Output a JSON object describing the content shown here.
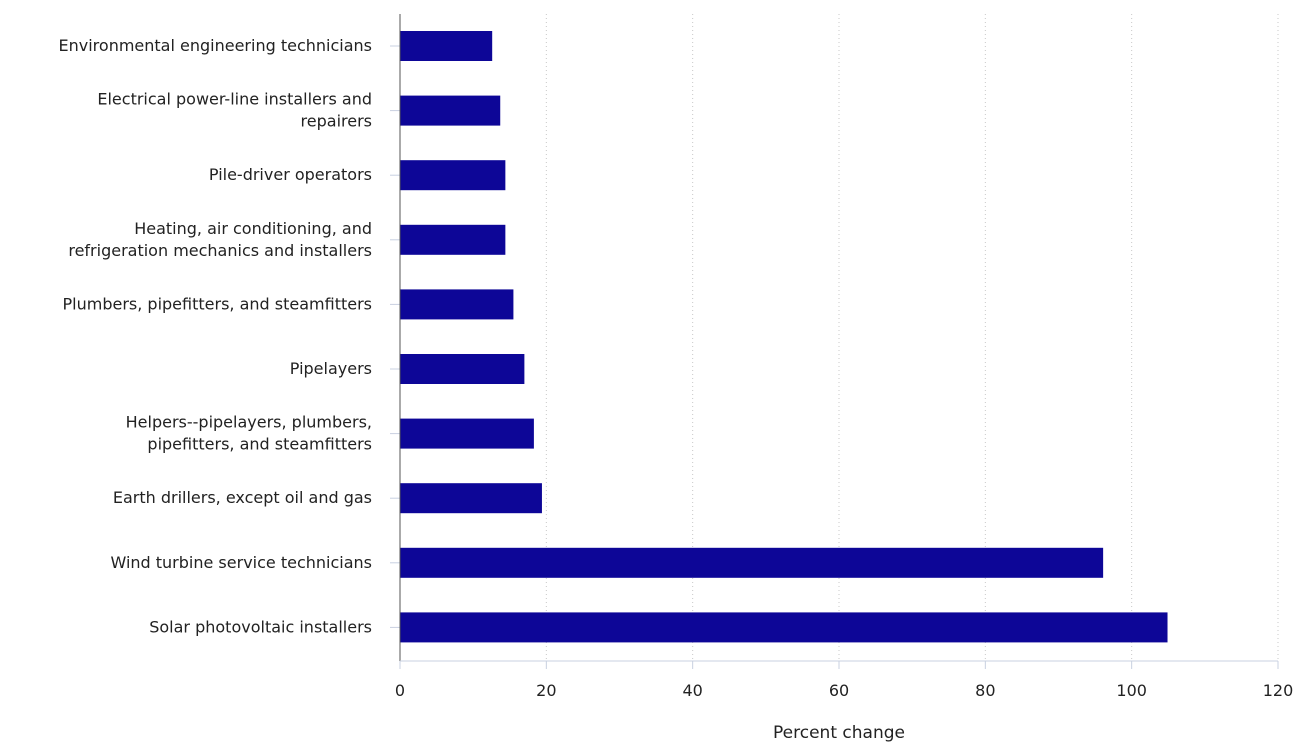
{
  "chart_data": {
    "type": "bar",
    "orientation": "horizontal",
    "title": "",
    "xlabel": "Percent change",
    "ylabel": "",
    "xlim": [
      0,
      120
    ],
    "xticks": [
      0,
      20,
      40,
      60,
      80,
      100,
      120
    ],
    "grid": true,
    "bar_color": "#0d0697",
    "categories": [
      "Environmental engineering technicians",
      "Electrical power-line installers and repairers",
      "Pile-driver operators",
      "Heating, air conditioning, and refrigeration mechanics and installers",
      "Plumbers, pipefitters, and steamfitters",
      "Pipelayers",
      "Helpers--pipelayers, plumbers, pipefitters, and steamfitters",
      "Earth drillers, except oil and gas",
      "Wind turbine service technicians",
      "Solar photovoltaic installers"
    ],
    "category_lines": [
      [
        "Environmental engineering technicians"
      ],
      [
        "Electrical power-line installers and",
        "repairers"
      ],
      [
        "Pile-driver operators"
      ],
      [
        "Heating, air conditioning, and",
        "refrigeration mechanics and installers"
      ],
      [
        "Plumbers, pipefitters, and steamfitters"
      ],
      [
        "Pipelayers"
      ],
      [
        "Helpers--pipelayers, plumbers,",
        "pipefitters, and steamfitters"
      ],
      [
        "Earth drillers, except oil and gas"
      ],
      [
        "Wind turbine service technicians"
      ],
      [
        "Solar photovoltaic installers"
      ]
    ],
    "values": [
      12.6,
      13.7,
      14.4,
      14.4,
      15.5,
      17.0,
      18.3,
      19.4,
      96.1,
      104.9
    ]
  }
}
